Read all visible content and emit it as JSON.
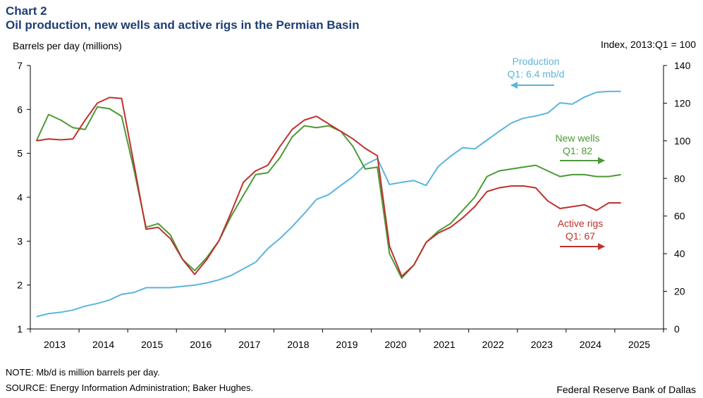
{
  "header": {
    "chart_number": "Chart 2",
    "title": "Oil production, new wells and active rigs in the Permian Basin",
    "left_axis_label": "Barrels per day (millions)",
    "right_axis_label": "Index,  2013:Q1 = 100"
  },
  "footer": {
    "note": "NOTE: Mb/d is million barrels per day.",
    "source": "SOURCE: Energy Information Administration; Baker Hughes.",
    "credit": "Federal Reserve Bank of Dallas"
  },
  "colors": {
    "production": "#5bb5dc",
    "new_wells": "#4a9a36",
    "active_rigs": "#c0302e"
  },
  "chart_data": {
    "type": "line",
    "x_unit": "quarter",
    "xlim": [
      "2013:Q1",
      "2025:Q4"
    ],
    "x_categories": [
      "2013",
      "2014",
      "2015",
      "2016",
      "2017",
      "2018",
      "2019",
      "2020",
      "2021",
      "2022",
      "2023",
      "2024",
      "2025"
    ],
    "y_left": {
      "label": "Barrels per day (millions)",
      "ylim": [
        1,
        7
      ],
      "ticks": [
        "1",
        "2",
        "3",
        "4",
        "5",
        "6",
        "7"
      ]
    },
    "y_right": {
      "label": "Index,  2013:Q1 = 100",
      "ylim": [
        0,
        140
      ],
      "ticks": [
        "0",
        "20",
        "40",
        "60",
        "80",
        "100",
        "120",
        "140"
      ]
    },
    "grid": false,
    "series": [
      {
        "key": "production",
        "name": "Production",
        "axis": "left",
        "color": "#5bb5dc",
        "label_lines": [
          "Production",
          "Q1: 6.4 mb/d"
        ],
        "start": "2013:Q1",
        "values": [
          1.28,
          1.35,
          1.38,
          1.43,
          1.52,
          1.58,
          1.66,
          1.79,
          1.83,
          1.94,
          1.94,
          1.94,
          1.97,
          2.0,
          2.05,
          2.12,
          2.22,
          2.37,
          2.52,
          2.83,
          3.06,
          3.33,
          3.63,
          3.95,
          4.06,
          4.27,
          4.47,
          4.74,
          4.88,
          4.29,
          4.34,
          4.38,
          4.27,
          4.7,
          4.93,
          5.13,
          5.1,
          5.3,
          5.5,
          5.69,
          5.8,
          5.85,
          5.92,
          6.15,
          6.12,
          6.28,
          6.39,
          6.41,
          6.41
        ]
      },
      {
        "key": "new_wells",
        "name": "New wells",
        "axis": "right",
        "color": "#4a9a36",
        "label_lines": [
          "New wells",
          "Q1: 82"
        ],
        "start": "2013:Q1",
        "values": [
          100,
          114,
          111,
          107,
          106,
          118,
          117,
          113,
          85,
          54,
          56,
          50,
          37,
          31,
          38,
          47,
          60,
          71,
          82,
          83,
          91,
          102,
          108,
          107,
          108,
          105,
          97,
          85,
          86,
          40,
          27,
          34,
          46,
          52,
          56,
          63,
          70,
          81,
          84,
          85,
          86,
          87,
          84,
          81,
          82,
          82,
          81,
          81,
          82
        ]
      },
      {
        "key": "active_rigs",
        "name": "Active rigs",
        "axis": "right",
        "color": "#c0302e",
        "label_lines": [
          "Active rigs",
          "Q1: 67"
        ],
        "start": "2013:Q1",
        "values": [
          100,
          101,
          100.5,
          101,
          111,
          120,
          123,
          122.5,
          88,
          53,
          54,
          48,
          37,
          29,
          37,
          47,
          62,
          78,
          84,
          87,
          97,
          106,
          111,
          113,
          109,
          105,
          101,
          96,
          92,
          44,
          28,
          34,
          46,
          51,
          54,
          59,
          65,
          73,
          75,
          76,
          76,
          75,
          68,
          64,
          65,
          66,
          63,
          67,
          67
        ]
      }
    ]
  }
}
